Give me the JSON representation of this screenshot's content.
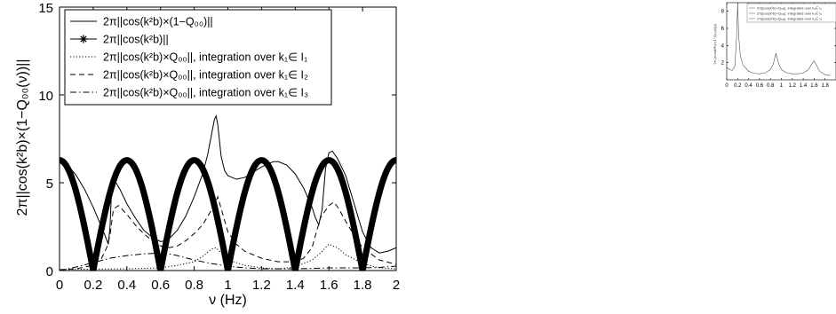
{
  "chart_data": [
    {
      "type": "line",
      "title": "",
      "xlabel": "ν (Hz)",
      "ylabel": "2π||cos(k²b)×(1−Q₀₀(ν))||",
      "xlim": [
        0,
        2
      ],
      "ylim": [
        0,
        15
      ],
      "xticks": [
        "0",
        "0.2",
        "0.4",
        "0.6",
        "0.8",
        "1",
        "1.2",
        "1.4",
        "1.6",
        "1.8",
        "2"
      ],
      "yticks": [
        "0",
        "5",
        "10",
        "15"
      ],
      "grid": false,
      "legend_position": "top-left",
      "series": [
        {
          "name": "2π||cos(k²b)×(1−Q₀₀)||",
          "style": "solid-thin",
          "color": "#000000",
          "x": [
            0,
            0.05,
            0.1,
            0.15,
            0.2,
            0.24,
            0.27,
            0.29,
            0.3,
            0.31,
            0.33,
            0.36,
            0.4,
            0.45,
            0.5,
            0.55,
            0.6,
            0.63,
            0.66,
            0.7,
            0.75,
            0.8,
            0.85,
            0.88,
            0.9,
            0.92,
            0.93,
            0.94,
            0.96,
            0.98,
            1.0,
            1.05,
            1.1,
            1.2,
            1.27,
            1.3,
            1.35,
            1.4,
            1.45,
            1.5,
            1.52,
            1.54,
            1.56,
            1.58,
            1.6,
            1.62,
            1.65,
            1.7,
            1.75,
            1.8,
            1.85,
            1.9,
            1.95,
            2.0
          ],
          "y": [
            6.3,
            6.0,
            5.4,
            4.6,
            3.6,
            2.7,
            2.0,
            1.5,
            2.5,
            4.8,
            5.1,
            4.6,
            3.8,
            3.0,
            2.3,
            1.9,
            1.65,
            1.7,
            1.9,
            2.3,
            3.1,
            4.2,
            5.5,
            6.6,
            7.6,
            8.6,
            8.8,
            8.3,
            6.5,
            5.7,
            5.4,
            5.2,
            5.3,
            5.9,
            6.2,
            6.2,
            6.0,
            5.5,
            4.7,
            3.6,
            3.0,
            2.6,
            3.5,
            5.8,
            6.7,
            6.8,
            6.4,
            5.4,
            3.8,
            2.2,
            1.3,
            1.0,
            1.1,
            1.3
          ]
        },
        {
          "name": "2π||cos(k²b)||",
          "style": "thick-star",
          "color": "#000000",
          "formula": "2π·|cos(5π·ν/2)|",
          "x_range": [
            0,
            2
          ]
        },
        {
          "name": "2π||cos(k²b)×Q₀₀||, integration over k₁∈ I₁",
          "style": "dotted",
          "color": "#000000",
          "x": [
            0,
            0.2,
            0.4,
            0.6,
            0.7,
            0.8,
            0.85,
            0.9,
            0.93,
            0.96,
            1.0,
            1.1,
            1.2,
            1.3,
            1.4,
            1.5,
            1.55,
            1.6,
            1.65,
            1.7,
            1.8,
            1.9,
            2.0
          ],
          "y": [
            0.05,
            0.08,
            0.1,
            0.15,
            0.3,
            0.5,
            0.8,
            1.2,
            1.3,
            1.0,
            0.6,
            0.3,
            0.15,
            0.1,
            0.2,
            0.6,
            1.0,
            1.5,
            1.3,
            0.9,
            0.4,
            0.15,
            0.1
          ]
        },
        {
          "name": "2π||cos(k²b)×Q₀₀||, integration over k₁∈ I₂",
          "style": "dashed",
          "color": "#000000",
          "x": [
            0,
            0.1,
            0.2,
            0.25,
            0.28,
            0.3,
            0.32,
            0.35,
            0.4,
            0.45,
            0.5,
            0.55,
            0.6,
            0.65,
            0.7,
            0.75,
            0.8,
            0.85,
            0.9,
            0.92,
            0.94,
            0.97,
            1.0,
            1.05,
            1.1,
            1.2,
            1.3,
            1.4,
            1.45,
            1.5,
            1.52,
            1.55,
            1.6,
            1.63,
            1.66,
            1.7,
            1.75,
            1.8,
            1.9,
            2.0
          ],
          "y": [
            0.05,
            0.1,
            0.3,
            0.7,
            1.3,
            2.0,
            3.5,
            3.7,
            3.2,
            2.6,
            2.1,
            1.7,
            1.4,
            1.3,
            1.4,
            1.7,
            2.1,
            2.6,
            3.4,
            3.7,
            4.2,
            3.2,
            2.2,
            1.5,
            1.1,
            0.7,
            0.5,
            0.5,
            0.7,
            1.3,
            2.0,
            3.0,
            3.7,
            3.9,
            3.5,
            2.8,
            2.0,
            1.3,
            0.6,
            0.35
          ]
        },
        {
          "name": "2π||cos(k²b)×Q₀₀||, integration over k₁∈ I₃",
          "style": "dashdot",
          "color": "#000000",
          "x": [
            0,
            0.1,
            0.2,
            0.3,
            0.4,
            0.5,
            0.6,
            0.65,
            0.7,
            0.8,
            0.9,
            1.0,
            1.1,
            1.2,
            1.3,
            1.4,
            1.5,
            1.6,
            1.7,
            1.8,
            1.9,
            2.0
          ],
          "y": [
            0.0,
            0.2,
            0.45,
            0.7,
            0.85,
            0.95,
            1.0,
            0.95,
            0.85,
            0.6,
            0.4,
            0.25,
            0.15,
            0.1,
            0.1,
            0.1,
            0.12,
            0.15,
            0.15,
            0.15,
            0.18,
            0.25
          ]
        }
      ]
    },
    {
      "type": "line",
      "title": "",
      "xlabel": "",
      "ylabel": "2π ||cos(k²b)×(1−Q₀₀(ν))||",
      "xlim": [
        0,
        2
      ],
      "ylim": [
        0,
        9
      ],
      "xticks": [
        "0",
        "0.2",
        "0.4",
        "0.6",
        "0.8",
        "1",
        "1.2",
        "1.4",
        "1.6",
        "1.8"
      ],
      "yticks": [
        "2",
        "4",
        "6",
        "8"
      ],
      "grid": false,
      "legend_position": "top-right",
      "legend_lines": [
        "2π||cos(k²b)×Q₀₀||, integrated over k₁∈ I₁",
        "2π||cos(k²b)×Q₀₀||, integrated over k₁∈ I₂",
        "2π||cos(k²b)×Q₀₀||, integrated over k₁∈ I₃"
      ],
      "series": [
        {
          "name": "2π||cos(k²b)×Q₀₀||, integrated over k₁∈ I₁",
          "style": "solid-thin",
          "color": "#555555",
          "x": [
            0,
            0.05,
            0.1,
            0.15,
            0.18,
            0.2,
            0.22,
            0.25,
            0.3,
            0.4,
            0.5,
            0.6,
            0.7,
            0.8,
            0.85,
            0.9,
            0.95,
            1.0,
            1.1,
            1.2,
            1.3,
            1.4,
            1.5,
            1.55,
            1.6,
            1.65,
            1.7,
            1.8,
            1.9
          ],
          "y": [
            1.5,
            1.2,
            1.1,
            1.6,
            5.0,
            8.9,
            5.0,
            2.8,
            1.7,
            1.0,
            0.75,
            0.7,
            0.8,
            1.2,
            1.8,
            3.1,
            1.9,
            1.2,
            0.8,
            0.7,
            0.7,
            0.8,
            1.2,
            1.8,
            2.2,
            1.6,
            1.0,
            0.6,
            0.5
          ]
        }
      ]
    }
  ]
}
